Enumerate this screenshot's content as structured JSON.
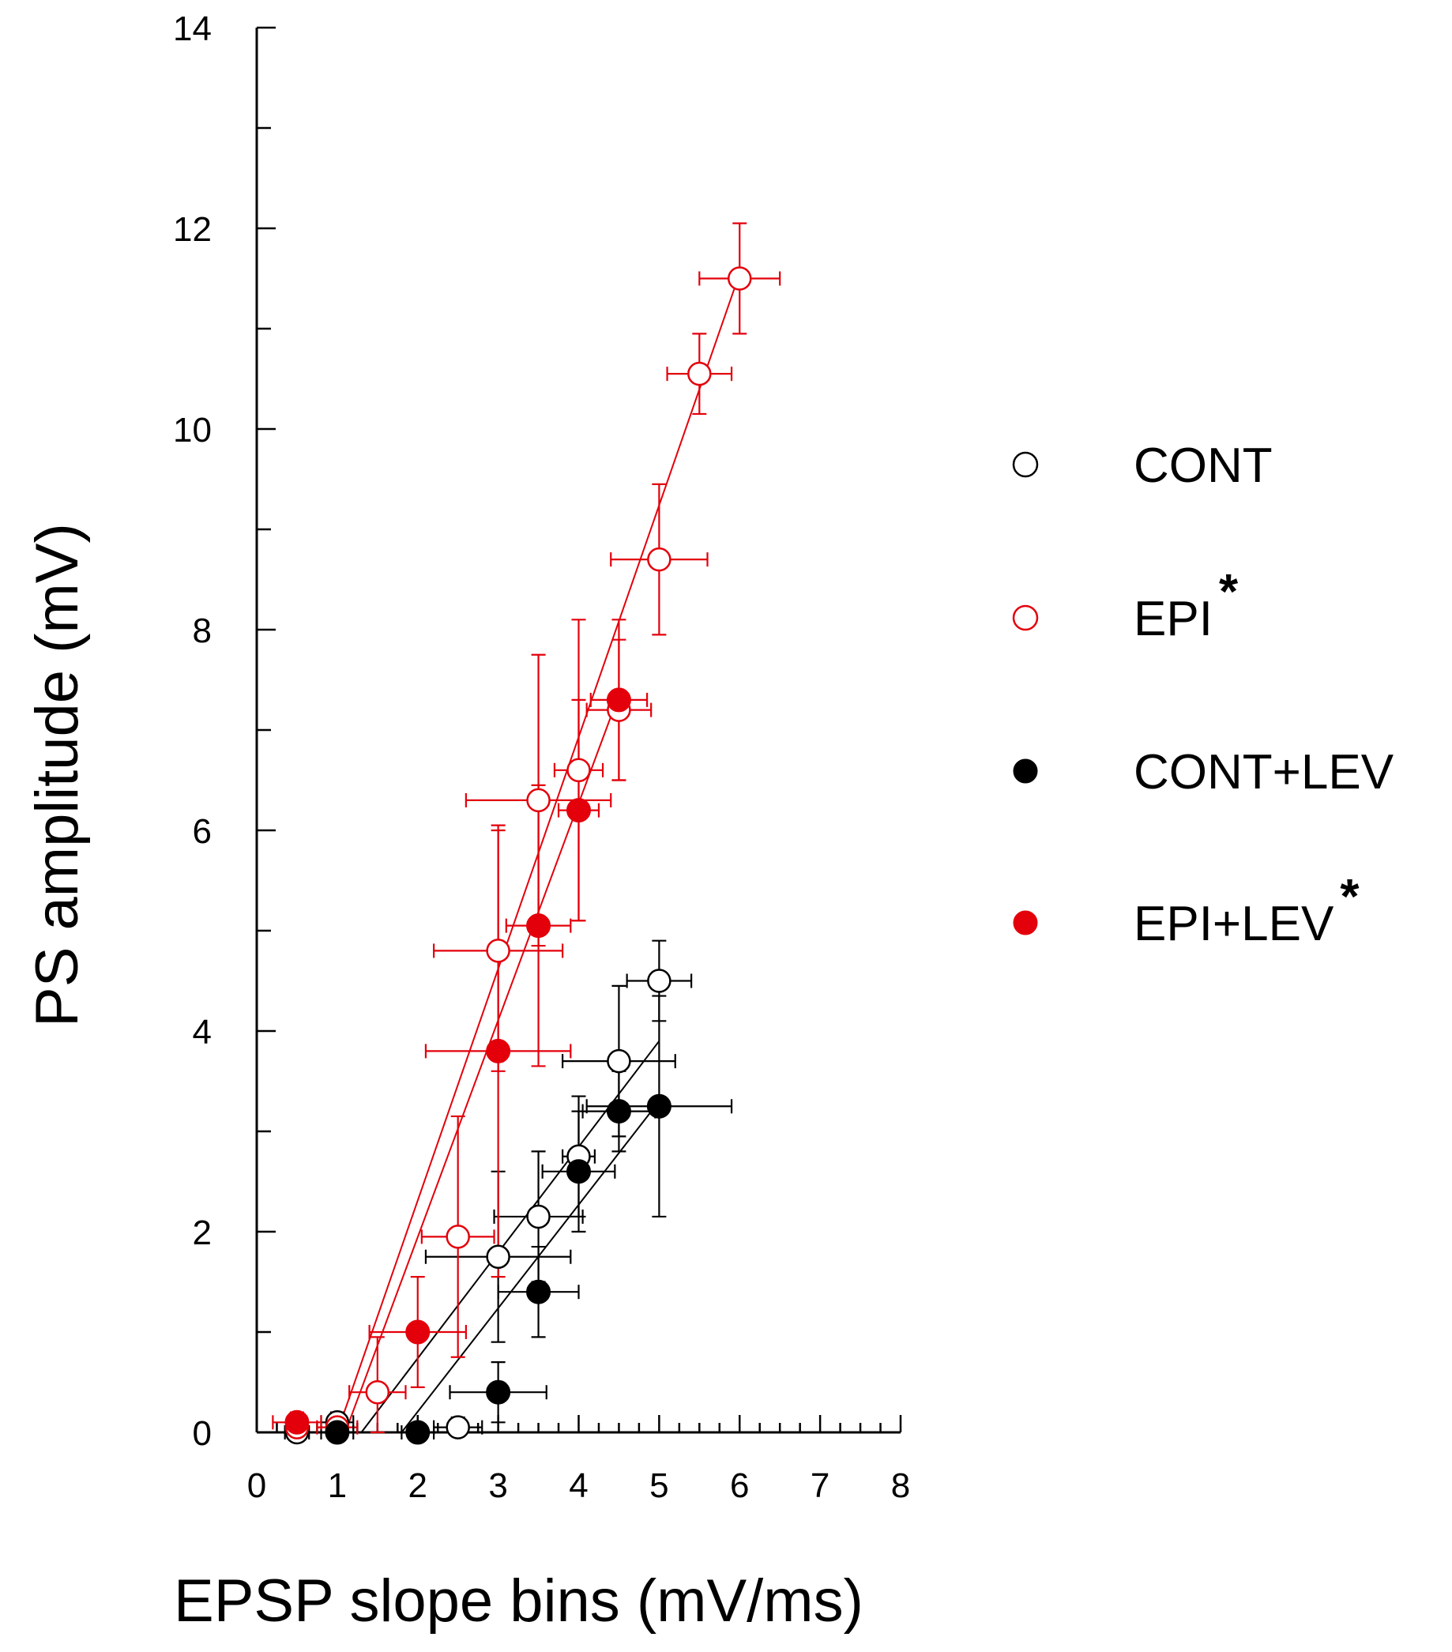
{
  "chart_data": {
    "type": "scatter",
    "xlabel": "EPSP slope bins (mV/ms)",
    "ylabel": "PS amplitude (mV)",
    "xlim": [
      0,
      8
    ],
    "ylim": [
      0,
      14
    ],
    "x_ticks": [
      "0",
      "1",
      "2",
      "3",
      "4",
      "5",
      "6",
      "7",
      "8"
    ],
    "y_ticks": [
      "0",
      "2",
      "4",
      "6",
      "8",
      "10",
      "12",
      "14"
    ],
    "legend_position": "right",
    "series": [
      {
        "name": "CONT",
        "color": "#000000",
        "marker": "open-circle",
        "points": [
          {
            "x": 0.5,
            "y": 0.0,
            "xerr": 0.15,
            "yerr": 0.05
          },
          {
            "x": 1.0,
            "y": 0.1,
            "xerr": 0.2,
            "yerr": 0.1
          },
          {
            "x": 2.5,
            "y": 0.05,
            "xerr": 0.3,
            "yerr": 0.1
          },
          {
            "x": 3.0,
            "y": 1.75,
            "xerr": 0.9,
            "yerr": 0.85
          },
          {
            "x": 3.5,
            "y": 2.15,
            "xerr": 0.55,
            "yerr": 0.65
          },
          {
            "x": 4.0,
            "y": 2.75,
            "xerr": 0.2,
            "yerr": 0.6
          },
          {
            "x": 4.5,
            "y": 3.7,
            "xerr": 0.7,
            "yerr": 0.75
          },
          {
            "x": 5.0,
            "y": 4.5,
            "xerr": 0.4,
            "yerr": 0.4
          }
        ],
        "fit": {
          "x1": 1.3,
          "y1": 0.0,
          "x2": 5.0,
          "y2": 3.9
        }
      },
      {
        "name": "EPI",
        "color": "#e3000b",
        "marker": "open-circle",
        "asterisk": "*",
        "points": [
          {
            "x": 0.5,
            "y": 0.05,
            "xerr": 0.1,
            "yerr": 0.05
          },
          {
            "x": 1.0,
            "y": 0.05,
            "xerr": 0.25,
            "yerr": 0.1
          },
          {
            "x": 1.5,
            "y": 0.4,
            "xerr": 0.35,
            "yerr": 0.55
          },
          {
            "x": 2.5,
            "y": 1.95,
            "xerr": 0.45,
            "yerr": 1.2
          },
          {
            "x": 3.0,
            "y": 4.8,
            "xerr": 0.8,
            "yerr": 1.2
          },
          {
            "x": 3.5,
            "y": 6.3,
            "xerr": 0.9,
            "yerr": 1.45
          },
          {
            "x": 4.0,
            "y": 6.6,
            "xerr": 0.3,
            "yerr": 1.5
          },
          {
            "x": 4.5,
            "y": 7.2,
            "xerr": 0.4,
            "yerr": 0.7
          },
          {
            "x": 5.0,
            "y": 8.7,
            "xerr": 0.6,
            "yerr": 0.75
          },
          {
            "x": 5.5,
            "y": 10.55,
            "xerr": 0.4,
            "yerr": 0.4
          },
          {
            "x": 6.0,
            "y": 11.5,
            "xerr": 0.5,
            "yerr": 0.55
          }
        ],
        "fit": {
          "x1": 1.0,
          "y1": 0.0,
          "x2": 6.0,
          "y2": 11.55
        }
      },
      {
        "name": "CONT+LEV",
        "color": "#000000",
        "marker": "filled-circle",
        "points": [
          {
            "x": 1.0,
            "y": 0.0,
            "xerr": 0.2,
            "yerr": 0.05
          },
          {
            "x": 2.0,
            "y": 0.0,
            "xerr": 0.2,
            "yerr": 0.05
          },
          {
            "x": 3.0,
            "y": 0.4,
            "xerr": 0.6,
            "yerr": 0.3
          },
          {
            "x": 3.5,
            "y": 1.4,
            "xerr": 0.5,
            "yerr": 0.45
          },
          {
            "x": 4.0,
            "y": 2.6,
            "xerr": 0.45,
            "yerr": 0.6
          },
          {
            "x": 4.5,
            "y": 3.2,
            "xerr": 0.45,
            "yerr": 0.4
          },
          {
            "x": 5.0,
            "y": 3.25,
            "xerr": 0.9,
            "yerr": 1.1
          }
        ],
        "fit": {
          "x1": 1.8,
          "y1": 0.0,
          "x2": 5.0,
          "y2": 3.3
        }
      },
      {
        "name": "EPI+LEV",
        "color": "#e3000b",
        "marker": "filled-circle",
        "asterisk": "*",
        "points": [
          {
            "x": 0.5,
            "y": 0.1,
            "xerr": 0.3,
            "yerr": 0.1
          },
          {
            "x": 2.0,
            "y": 1.0,
            "xerr": 0.6,
            "yerr": 0.55
          },
          {
            "x": 3.0,
            "y": 3.8,
            "xerr": 0.9,
            "yerr": 2.25
          },
          {
            "x": 3.5,
            "y": 5.05,
            "xerr": 0.4,
            "yerr": 1.4
          },
          {
            "x": 4.0,
            "y": 6.2,
            "xerr": 0.25,
            "yerr": 1.1
          },
          {
            "x": 4.5,
            "y": 7.3,
            "xerr": 0.35,
            "yerr": 0.8
          }
        ],
        "fit": {
          "x1": 1.1,
          "y1": 0.0,
          "x2": 4.5,
          "y2": 7.35
        }
      }
    ]
  }
}
